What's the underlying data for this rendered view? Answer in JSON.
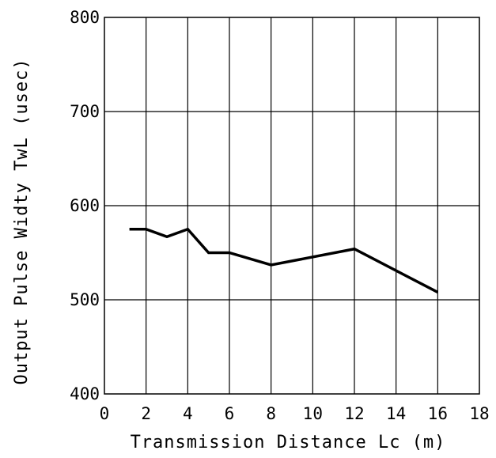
{
  "chart_data": {
    "type": "line",
    "title": "",
    "xlabel": "Transmission Distance Lc (m)",
    "ylabel": "Output Pulse Widty TwL (usec)",
    "xlim": [
      0,
      18
    ],
    "ylim": [
      400,
      800
    ],
    "x_ticks": [
      "0",
      "2",
      "4",
      "6",
      "8",
      "10",
      "12",
      "14",
      "16",
      "18"
    ],
    "y_ticks": [
      "400",
      "500",
      "600",
      "700",
      "800"
    ],
    "grid": true,
    "x_grid_step": 2,
    "y_grid_step": 100,
    "line_color": "#000000",
    "series": [
      {
        "x": [
          1.2,
          2,
          3,
          4,
          5,
          6,
          8,
          12,
          16
        ],
        "y": [
          575,
          575,
          567,
          575,
          550,
          550,
          537,
          554,
          508
        ]
      }
    ]
  }
}
